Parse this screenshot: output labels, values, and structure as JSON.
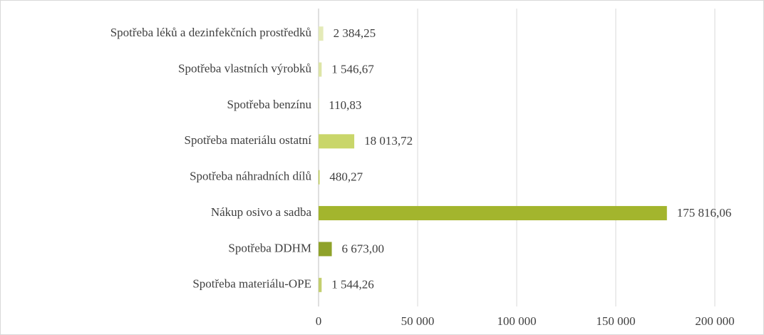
{
  "chart_data": {
    "type": "barh",
    "categories": [
      "Spotřeba léků a dezinfekčních prostředků",
      "Spotřeba vlastních výrobků",
      "Spotřeba benzínu",
      "Spotřeba materiálu ostatní",
      "Spotřeba náhradních dílů",
      "Nákup osivo a sadba",
      "Spotřeba DDHM",
      "Spotřeba materiálu-OPE"
    ],
    "values": [
      2384.25,
      1546.67,
      110.83,
      18013.72,
      480.27,
      175816.06,
      6673,
      1544.26
    ],
    "value_labels": [
      "2 384,25",
      "1 546,67",
      "110,83",
      "18 013,72",
      "480,27",
      "175 816,06",
      "6 673,00",
      "1 544,26"
    ],
    "colors": [
      "#e4eab8",
      "#dde5a6",
      "#d4de8c",
      "#c9d66a",
      "#b9c948",
      "#a3b52d",
      "#8fa22a",
      "#c3cf6e"
    ],
    "xlim": [
      0,
      200000
    ],
    "xticks": [
      0,
      {
        "value": 50000,
        "label": "50 000"
      },
      {
        "value": 100000,
        "label": "100 000"
      },
      {
        "value": 150000,
        "label": "150 000"
      },
      {
        "value": 200000,
        "label": "200 000"
      }
    ],
    "grid": true
  }
}
